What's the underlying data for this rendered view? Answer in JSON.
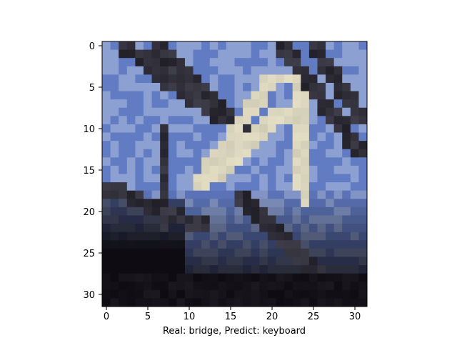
{
  "figure": {
    "xlabel": "Real: bridge, Predict: keyboard",
    "image_description": "Pixelated 32x32 photo of a bridge truss against a blue sky"
  },
  "axes": {
    "x_ticks": [
      "0",
      "5",
      "10",
      "15",
      "20",
      "25",
      "30"
    ],
    "y_ticks": [
      "0",
      "5",
      "10",
      "15",
      "20",
      "25",
      "30"
    ]
  },
  "colors": {
    "sky_blue": "#6b85c4",
    "light_blue": "#a9b8d9",
    "cream_beam": "#e6e0c8",
    "dark": "#12101a",
    "gray": "#5d5f6f"
  }
}
